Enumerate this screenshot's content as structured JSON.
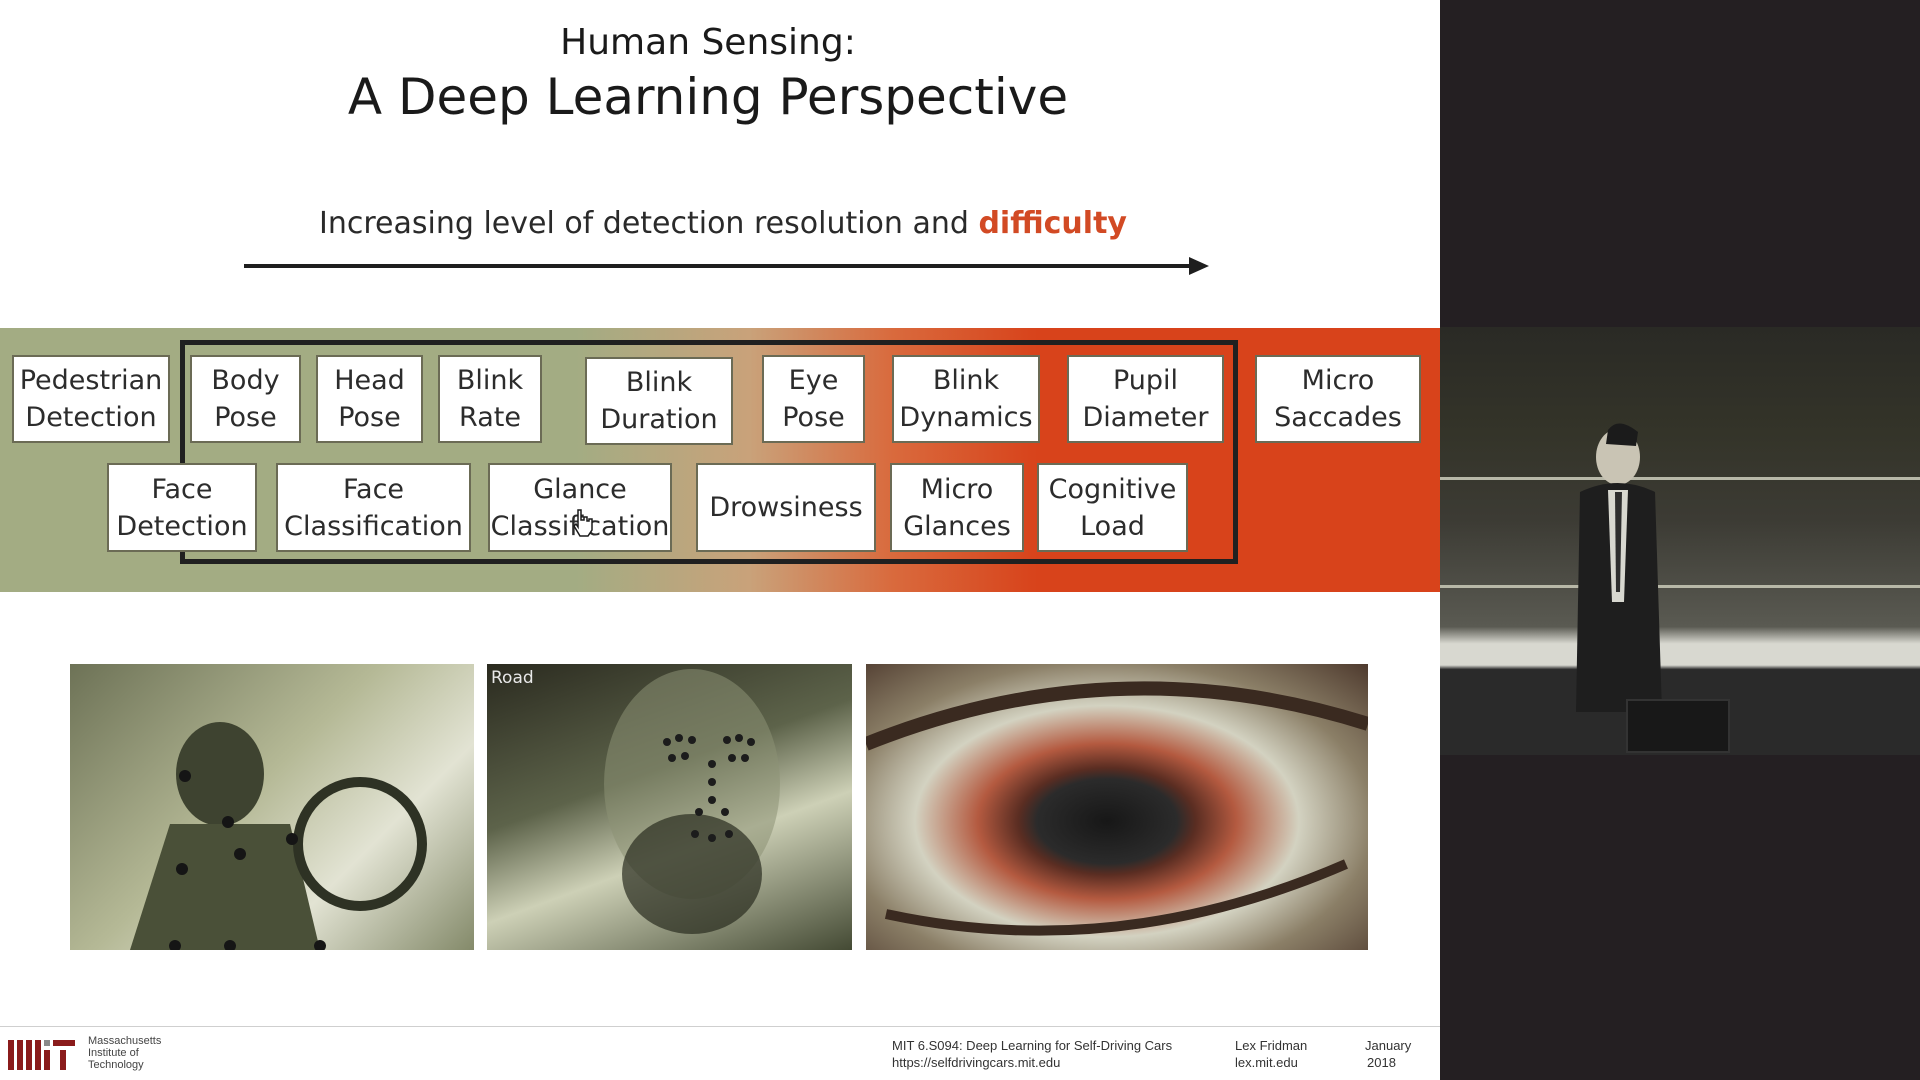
{
  "slide": {
    "title_line1": "Human Sensing:",
    "title_line2": "A Deep Learning Perspective",
    "subtitle_prefix": "Increasing level of detection resolution and ",
    "subtitle_highlight": "difficulty",
    "row1": [
      {
        "label": "Pedestrian\nDetection"
      },
      {
        "label": "Body\nPose"
      },
      {
        "label": "Head\nPose"
      },
      {
        "label": "Blink\nRate"
      },
      {
        "label": "Blink\nDuration"
      },
      {
        "label": "Eye\nPose"
      },
      {
        "label": "Blink\nDynamics"
      },
      {
        "label": "Pupil\nDiameter"
      },
      {
        "label": "Micro\nSaccades"
      }
    ],
    "row2": [
      {
        "label": "Face\nDetection"
      },
      {
        "label": "Face\nClassification"
      },
      {
        "label": "Glance\nClassification"
      },
      {
        "label": "Drowsiness"
      },
      {
        "label": "Micro\nGlances"
      },
      {
        "label": "Cognitive\nLoad"
      }
    ],
    "photo2_label": "Road",
    "colors": {
      "band_green": "#a3ac83",
      "band_red": "#d8431b",
      "highlight": "#d24a24"
    }
  },
  "footer": {
    "institute": "Massachusetts\nInstitute of\nTechnology",
    "course": "MIT 6.S094: Deep Learning for Self-Driving Cars",
    "course_url": "https://selfdrivingcars.mit.edu",
    "author": "Lex Fridman",
    "author_site": "lex.mit.edu",
    "month": "January",
    "year": "2018"
  }
}
